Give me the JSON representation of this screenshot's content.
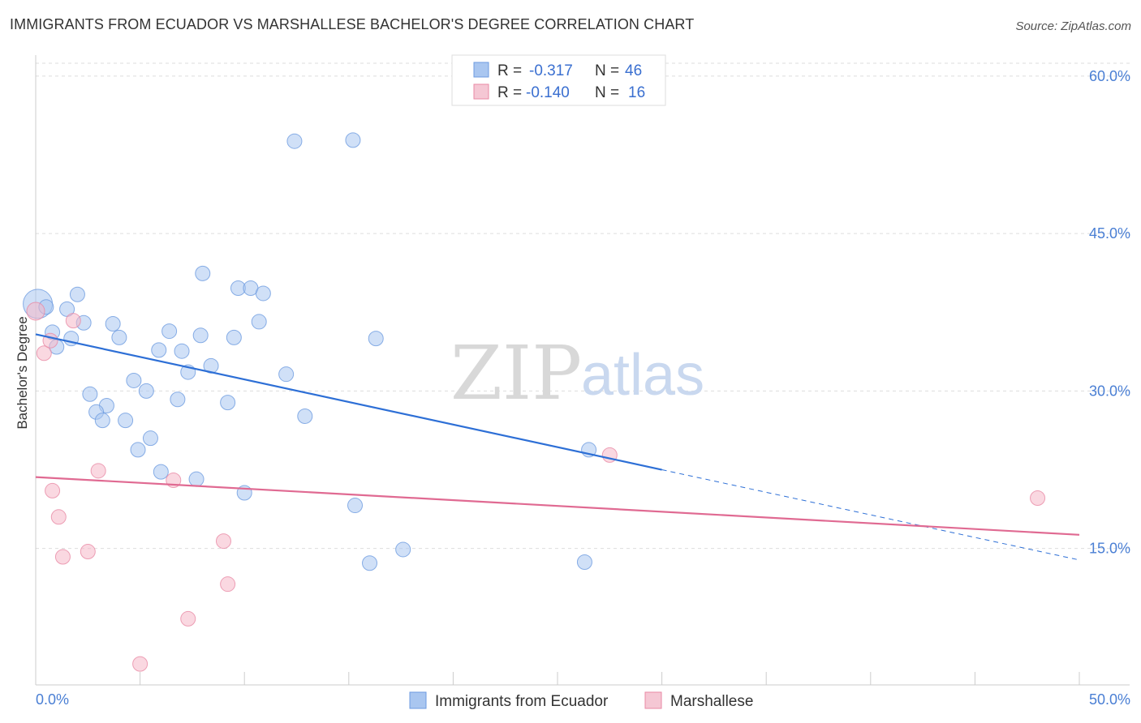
{
  "title": "IMMIGRANTS FROM ECUADOR VS MARSHALLESE BACHELOR'S DEGREE CORRELATION CHART",
  "source": "Source: ZipAtlas.com",
  "watermark": {
    "zip": "ZIP",
    "atlas": "atlas"
  },
  "stats": [
    {
      "r_label": "R =",
      "r_value": "-0.317",
      "n_label": "N =",
      "n_value": "46",
      "color": "#a9c6f0"
    },
    {
      "r_label": "R =",
      "r_value": "-0.140",
      "n_label": "N =",
      "n_value": "16",
      "color": "#f5b8c8"
    }
  ],
  "chart_data": {
    "type": "scatter",
    "title": "IMMIGRANTS FROM ECUADOR VS MARSHALLESE BACHELOR'S DEGREE CORRELATION CHART",
    "xlabel": "",
    "ylabel": "Bachelor's Degree",
    "xlim": [
      0,
      50
    ],
    "ylim": [
      2,
      62
    ],
    "x_tick_labels": [
      "0.0%",
      "50.0%"
    ],
    "y_ticks": [
      15,
      30,
      45,
      60
    ],
    "y_tick_labels": [
      "15.0%",
      "30.0%",
      "45.0%",
      "60.0%"
    ],
    "grid": true,
    "legend_position": "bottom-center",
    "series": [
      {
        "name": "Immigrants from Ecuador",
        "color": "#a9c6f0",
        "stroke": "#6d9be0",
        "points": [
          [
            0.1,
            38.3
          ],
          [
            0.5,
            38.0
          ],
          [
            1.5,
            37.8
          ],
          [
            2.0,
            39.2
          ],
          [
            2.3,
            36.5
          ],
          [
            0.8,
            35.6
          ],
          [
            1.0,
            34.2
          ],
          [
            1.7,
            35.0
          ],
          [
            3.7,
            36.4
          ],
          [
            4.0,
            35.1
          ],
          [
            6.4,
            35.7
          ],
          [
            7.9,
            35.3
          ],
          [
            9.5,
            35.1
          ],
          [
            5.9,
            33.9
          ],
          [
            7.0,
            33.8
          ],
          [
            7.3,
            31.8
          ],
          [
            8.4,
            32.4
          ],
          [
            12.0,
            31.6
          ],
          [
            4.7,
            31.0
          ],
          [
            5.3,
            30.0
          ],
          [
            2.6,
            29.7
          ],
          [
            3.4,
            28.6
          ],
          [
            2.9,
            28.0
          ],
          [
            3.2,
            27.2
          ],
          [
            4.3,
            27.2
          ],
          [
            6.8,
            29.2
          ],
          [
            9.2,
            28.9
          ],
          [
            12.9,
            27.6
          ],
          [
            5.5,
            25.5
          ],
          [
            4.9,
            24.4
          ],
          [
            6.0,
            22.3
          ],
          [
            7.7,
            21.6
          ],
          [
            10.0,
            20.3
          ],
          [
            8.0,
            41.2
          ],
          [
            9.7,
            39.8
          ],
          [
            10.3,
            39.8
          ],
          [
            10.9,
            39.3
          ],
          [
            10.7,
            36.6
          ],
          [
            12.4,
            53.8
          ],
          [
            15.2,
            53.9
          ],
          [
            16.3,
            35.0
          ],
          [
            15.3,
            19.1
          ],
          [
            16.0,
            13.6
          ],
          [
            17.6,
            14.9
          ],
          [
            26.5,
            24.4
          ],
          [
            26.3,
            13.7
          ]
        ]
      },
      {
        "name": "Marshallese",
        "color": "#f5b8c8",
        "stroke": "#e98aa5",
        "points": [
          [
            0.0,
            37.6
          ],
          [
            0.4,
            33.6
          ],
          [
            0.7,
            34.8
          ],
          [
            1.8,
            36.7
          ],
          [
            0.8,
            20.5
          ],
          [
            1.1,
            18.0
          ],
          [
            1.3,
            14.2
          ],
          [
            2.5,
            14.7
          ],
          [
            3.0,
            22.4
          ],
          [
            6.6,
            21.5
          ],
          [
            9.0,
            15.7
          ],
          [
            9.2,
            11.6
          ],
          [
            7.3,
            8.3
          ],
          [
            5.0,
            4.0
          ],
          [
            27.5,
            23.9
          ],
          [
            48.0,
            19.8
          ]
        ]
      }
    ],
    "trendlines": [
      {
        "series": "Immigrants from Ecuador",
        "solid": [
          [
            0.0,
            35.4
          ],
          [
            30.0,
            22.5
          ]
        ],
        "dashed": [
          [
            30.0,
            22.5
          ],
          [
            50.0,
            13.9
          ]
        ],
        "color": "#2d6fd6"
      },
      {
        "series": "Marshallese",
        "solid": [
          [
            0.0,
            21.8
          ],
          [
            50.0,
            16.3
          ]
        ],
        "color": "#e06a92"
      }
    ]
  }
}
